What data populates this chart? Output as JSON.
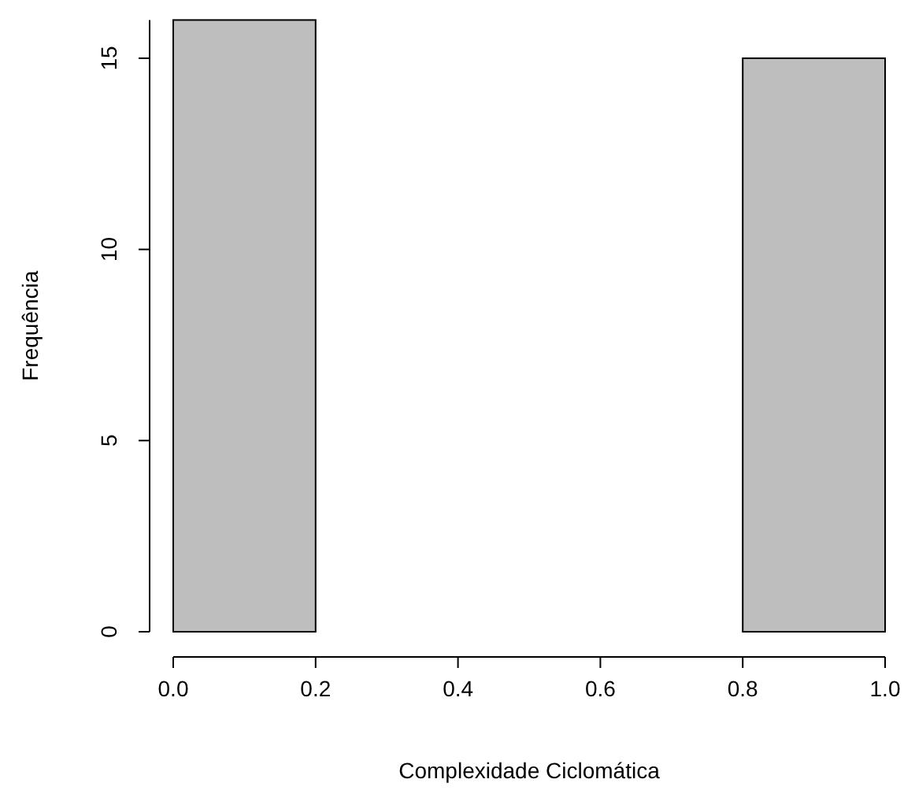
{
  "chart_data": {
    "type": "histogram",
    "xlabel": "Complexidade Ciclomática",
    "ylabel": "Frequência",
    "bins": [
      0,
      0.2,
      0.4,
      0.6,
      0.8,
      1.0
    ],
    "values": [
      16,
      0,
      0,
      0,
      15
    ],
    "color": "#bebebe",
    "xlim": [
      0,
      1.0
    ],
    "xticks": [
      {
        "value": 0,
        "label": "0.0"
      },
      {
        "value": 0.2,
        "label": "0.2"
      },
      {
        "value": 0.4,
        "label": "0.4"
      },
      {
        "value": 0.6,
        "label": "0.6"
      },
      {
        "value": 0.8,
        "label": "0.8"
      },
      {
        "value": 1.0,
        "label": "1.0"
      }
    ],
    "ylim": [
      0,
      16
    ],
    "yticks": [
      0,
      5,
      10,
      15
    ],
    "grid": false
  }
}
